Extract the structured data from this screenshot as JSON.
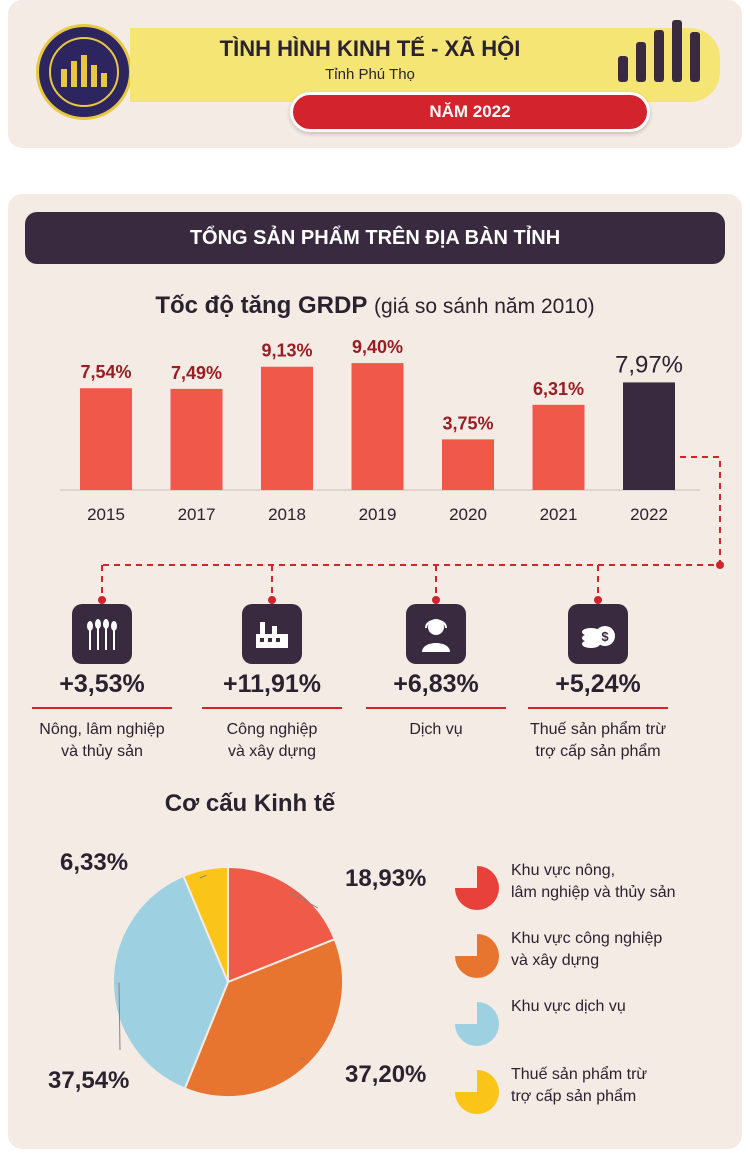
{
  "header": {
    "title": "TÌNH HÌNH KINH TẾ - XÃ HỘI",
    "subtitle": "Tỉnh Phú Thọ",
    "year_label": "NĂM 2022"
  },
  "section": {
    "banner": "TỔNG SẢN PHẨM TRÊN ĐỊA BÀN TỈNH"
  },
  "grdp": {
    "title_bold": "Tốc độ tăng GRDP",
    "title_sub": "(giá so sánh năm 2010)"
  },
  "colors": {
    "bar": "#f0584a",
    "bar_highlight": "#3a2a40",
    "value_label": "#9a1c24",
    "accent_red": "#d3242e"
  },
  "sectors": [
    {
      "icon": "wheat-icon",
      "value": "+3,53%",
      "label_line1": "Nông, lâm nghiệp",
      "label_line2": "và thủy sản"
    },
    {
      "icon": "factory-icon",
      "value": "+11,91%",
      "label_line1": "Công nghiệp",
      "label_line2": "và xây dựng"
    },
    {
      "icon": "service-person-icon",
      "value": "+6,83%",
      "label_line1": "Dịch vụ",
      "label_line2": ""
    },
    {
      "icon": "coins-icon",
      "value": "+5,24%",
      "label_line1": "Thuế sản phẩm trừ",
      "label_line2": "trợ cấp sản phẩm"
    }
  ],
  "structure": {
    "title": "Cơ cấu Kinh tế"
  },
  "chart_data": [
    {
      "type": "bar",
      "title": "Tốc độ tăng GRDP (giá so sánh năm 2010)",
      "categories": [
        "2015",
        "2017",
        "2018",
        "2019",
        "2020",
        "2021",
        "2022"
      ],
      "values": [
        7.54,
        7.49,
        9.13,
        9.4,
        3.75,
        6.31,
        7.97
      ],
      "value_labels": [
        "7,54%",
        "7,49%",
        "9,13%",
        "9,40%",
        "3,75%",
        "6,31%",
        "7,97%"
      ],
      "highlight_index": 6
    },
    {
      "type": "pie",
      "title": "Cơ cấu Kinh tế",
      "slices": [
        {
          "name": "Khu vực nông, lâm nghiệp và thủy sản",
          "value": 18.93,
          "label": "18,93%",
          "color": "#ef5a49"
        },
        {
          "name": "Khu vực công nghiệp và xây dựng",
          "value": 37.2,
          "label": "37,20%",
          "color": "#e8752f"
        },
        {
          "name": "Khu vực dịch vụ",
          "value": 37.54,
          "label": "37,54%",
          "color": "#9dd0e1"
        },
        {
          "name": "Thuế sản phẩm trừ trợ cấp sản phẩm",
          "value": 6.33,
          "label": "6,33%",
          "color": "#fbc419"
        }
      ],
      "legend": [
        {
          "line1": "Khu vực nông,",
          "line2": "lâm nghiệp và thủy sản",
          "color": "#e8403a"
        },
        {
          "line1": "Khu vực công nghiệp",
          "line2": "và xây dựng",
          "color": "#e8752f"
        },
        {
          "line1": "Khu vực dịch vụ",
          "line2": "",
          "color": "#9dd0e1"
        },
        {
          "line1": "Thuế sản phẩm trừ",
          "line2": "trợ cấp sản phẩm",
          "color": "#fbc419"
        }
      ]
    }
  ]
}
